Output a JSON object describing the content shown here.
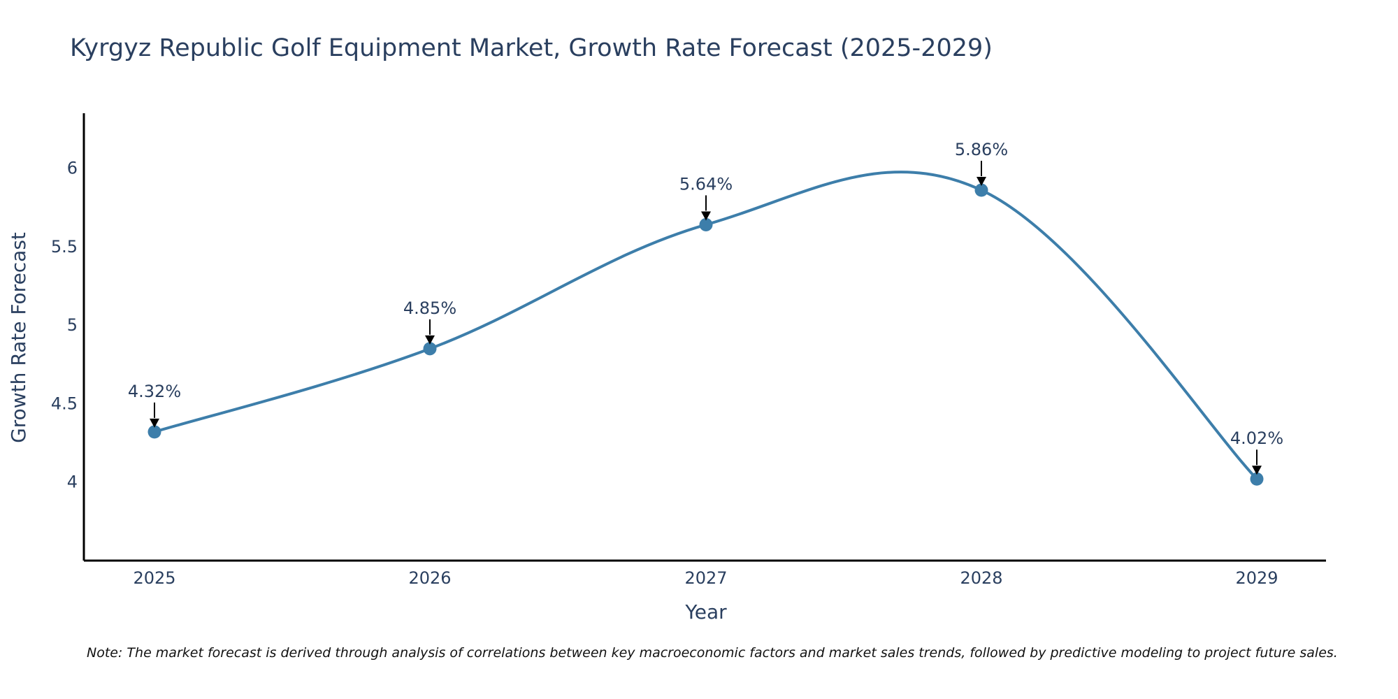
{
  "chart_data": {
    "type": "line",
    "title": "Kyrgyz Republic Golf Equipment Market, Growth Rate Forecast (2025-2029)",
    "xlabel": "Year",
    "ylabel": "Growth Rate Forecast",
    "categories": [
      "2025",
      "2026",
      "2027",
      "2028",
      "2029"
    ],
    "values": [
      4.32,
      4.85,
      5.64,
      5.86,
      4.02
    ],
    "data_labels": [
      "4.32%",
      "4.85%",
      "5.64%",
      "5.86%",
      "4.02%"
    ],
    "y_ticks": [
      "4",
      "4.5",
      "5",
      "5.5",
      "6"
    ],
    "ylim": [
      3.5,
      6.35
    ],
    "grid": false,
    "line_color": "#3d7eaa",
    "note": "Note: The market forecast is derived through analysis of correlations between key macroeconomic factors and market sales trends, followed by predictive modeling to project future sales."
  }
}
